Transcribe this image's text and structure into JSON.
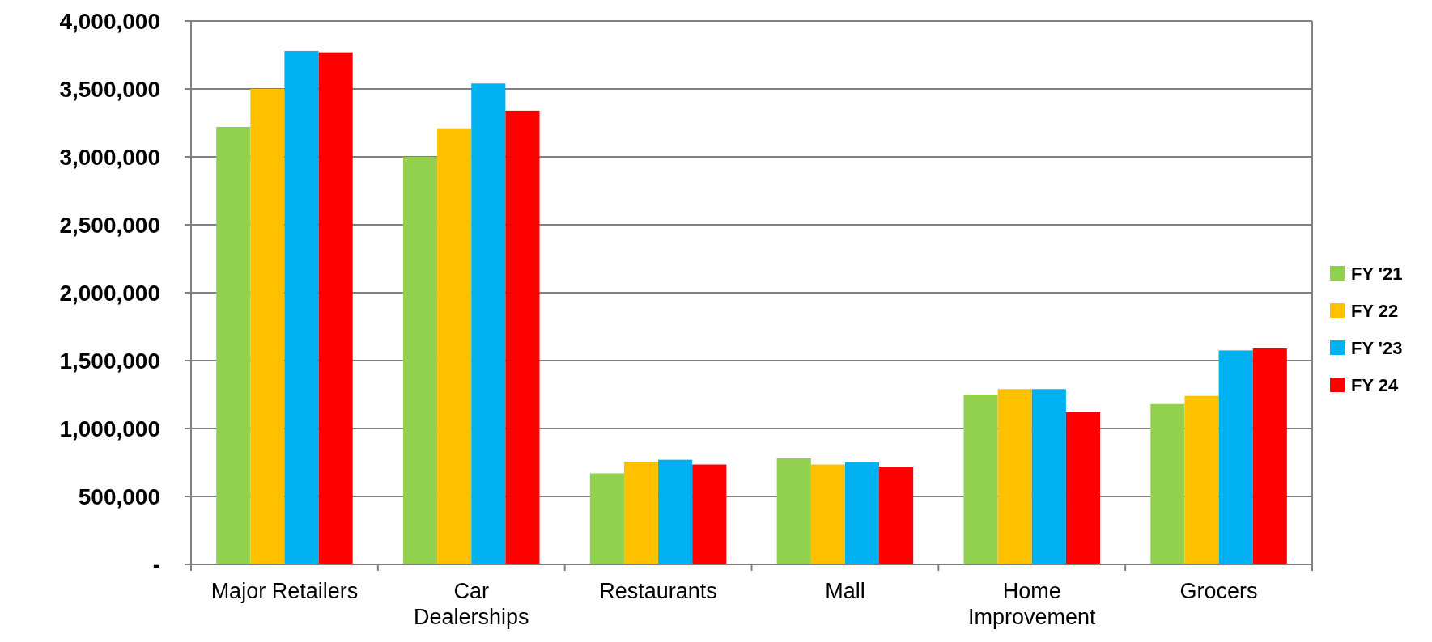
{
  "chart_data": {
    "type": "bar",
    "categories": [
      "Major Retailers",
      "Car Dealerships",
      "Restaurants",
      "Mall",
      "Home Improvement",
      "Grocers"
    ],
    "series": [
      {
        "name": "FY '21",
        "color": "#92d050",
        "values": [
          3220000,
          3000000,
          670000,
          780000,
          1250000,
          1180000
        ]
      },
      {
        "name": "FY 22",
        "color": "#ffc000",
        "values": [
          3500000,
          3210000,
          755000,
          735000,
          1290000,
          1240000
        ]
      },
      {
        "name": "FY '23",
        "color": "#00b0f0",
        "values": [
          3780000,
          3540000,
          770000,
          750000,
          1290000,
          1575000
        ]
      },
      {
        "name": "FY 24",
        "color": "#ff0000",
        "values": [
          3770000,
          3340000,
          735000,
          720000,
          1120000,
          1590000
        ]
      }
    ],
    "ylim": [
      0,
      4000000
    ],
    "yticks": [
      {
        "value": 0,
        "label": "-"
      },
      {
        "value": 500000,
        "label": "500,000"
      },
      {
        "value": 1000000,
        "label": "1,000,000"
      },
      {
        "value": 1500000,
        "label": "1,500,000"
      },
      {
        "value": 2000000,
        "label": "2,000,000"
      },
      {
        "value": 2500000,
        "label": "2,500,000"
      },
      {
        "value": 3000000,
        "label": "3,000,000"
      },
      {
        "value": 3500000,
        "label": "3,500,000"
      },
      {
        "value": 4000000,
        "label": "4,000,000"
      }
    ],
    "grid": "y",
    "legend": "right"
  }
}
